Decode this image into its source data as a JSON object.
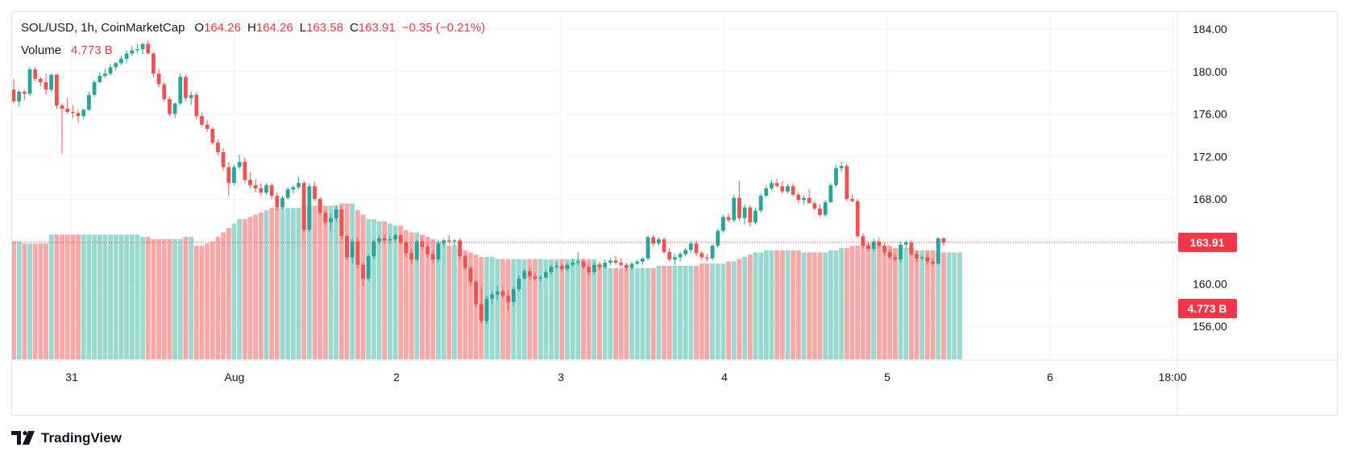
{
  "header": {
    "symbol": "SOL/USD, 1h, CoinMarketCap",
    "open_label": "O",
    "open": "164.26",
    "high_label": "H",
    "high": "164.26",
    "low_label": "L",
    "low": "163.58",
    "close_label": "C",
    "close": "163.91",
    "change": "−0.35 (−0.21%)",
    "volume_label": "Volume",
    "volume_value": "4.773 B"
  },
  "brand": {
    "name": "TradingView"
  },
  "colors": {
    "up": "#26a69a",
    "down": "#ef5350",
    "up_volume": "#9ad9d0",
    "down_volume": "#f7a9a7",
    "grid": "#f0f3fa",
    "last_price": "#f23645"
  },
  "chart_data": {
    "type": "candlestick",
    "interval": "1h",
    "y_axis": {
      "ticks": [
        "156.00",
        "160.00",
        "164.00",
        "168.00",
        "172.00",
        "176.00",
        "180.00",
        "184.00"
      ],
      "range": [
        152.9,
        185.6
      ]
    },
    "x_axis": {
      "ticks": [
        "31",
        "Aug",
        "2",
        "3",
        "4",
        "5",
        "6",
        "18:00"
      ]
    },
    "last_price": "163.91",
    "last_volume": "4.773 B",
    "grid": true,
    "legend_position": "top-left",
    "candles": [
      [
        178.3,
        179.3,
        177.0,
        177.2
      ],
      [
        177.2,
        178.3,
        176.7,
        178.1
      ],
      [
        178.1,
        178.3,
        177.3,
        177.9
      ],
      [
        177.9,
        180.4,
        177.7,
        180.2
      ],
      [
        180.2,
        180.4,
        179.1,
        179.3
      ],
      [
        179.3,
        179.5,
        178.6,
        179.0
      ],
      [
        179.0,
        179.8,
        177.8,
        178.3
      ],
      [
        178.3,
        179.8,
        178.0,
        179.7
      ],
      [
        179.7,
        179.8,
        176.5,
        176.8
      ],
      [
        176.8,
        177.0,
        172.3,
        176.5
      ],
      [
        176.5,
        177.5,
        176.0,
        176.2
      ],
      [
        176.2,
        176.8,
        175.6,
        176.1
      ],
      [
        176.1,
        176.4,
        175.2,
        175.8
      ],
      [
        175.8,
        176.5,
        175.5,
        176.4
      ],
      [
        176.4,
        178.1,
        176.3,
        177.8
      ],
      [
        177.8,
        179.2,
        177.6,
        179.0
      ],
      [
        179.0,
        179.9,
        178.9,
        179.6
      ],
      [
        179.6,
        180.3,
        179.4,
        179.8
      ],
      [
        179.8,
        180.7,
        179.6,
        180.4
      ],
      [
        180.4,
        180.9,
        180.1,
        180.8
      ],
      [
        180.8,
        181.5,
        180.6,
        181.2
      ],
      [
        181.2,
        182.0,
        180.8,
        181.7
      ],
      [
        181.7,
        182.4,
        181.5,
        182.0
      ],
      [
        182.0,
        182.6,
        181.7,
        182.1
      ],
      [
        182.1,
        182.7,
        181.6,
        182.6
      ],
      [
        182.6,
        182.9,
        181.9,
        181.7
      ],
      [
        181.7,
        181.8,
        179.5,
        179.8
      ],
      [
        179.8,
        180.2,
        178.5,
        178.8
      ],
      [
        178.8,
        179.0,
        177.2,
        177.4
      ],
      [
        177.4,
        177.6,
        175.8,
        176.0
      ],
      [
        176.0,
        177.1,
        175.6,
        177.0
      ],
      [
        177.0,
        179.8,
        176.8,
        179.5
      ],
      [
        179.5,
        179.7,
        177.2,
        177.5
      ],
      [
        177.5,
        178.1,
        176.8,
        177.8
      ],
      [
        177.8,
        178.0,
        175.5,
        175.8
      ],
      [
        175.8,
        176.1,
        174.8,
        175.0
      ],
      [
        175.0,
        175.4,
        174.3,
        174.6
      ],
      [
        174.6,
        174.8,
        173.1,
        173.3
      ],
      [
        173.3,
        173.6,
        172.1,
        172.4
      ],
      [
        172.4,
        172.8,
        170.7,
        171.0
      ],
      [
        171.0,
        171.5,
        168.3,
        169.5
      ],
      [
        169.5,
        171.2,
        169.3,
        171.0
      ],
      [
        171.0,
        172.2,
        170.8,
        171.5
      ],
      [
        171.5,
        171.9,
        169.5,
        169.8
      ],
      [
        169.8,
        170.5,
        169.0,
        169.3
      ],
      [
        169.3,
        169.9,
        168.6,
        169.0
      ],
      [
        169.0,
        169.5,
        168.3,
        168.6
      ],
      [
        168.6,
        169.5,
        168.4,
        169.3
      ],
      [
        169.3,
        169.5,
        168.0,
        168.3
      ],
      [
        168.3,
        168.6,
        166.9,
        167.2
      ],
      [
        167.2,
        168.3,
        167.0,
        168.1
      ],
      [
        168.1,
        169.1,
        167.9,
        168.9
      ],
      [
        168.9,
        169.3,
        168.5,
        169.1
      ],
      [
        169.1,
        170.1,
        168.9,
        169.5
      ],
      [
        169.5,
        169.7,
        164.8,
        165.1
      ],
      [
        165.1,
        169.5,
        164.9,
        169.2
      ],
      [
        169.2,
        169.6,
        167.8,
        168.0
      ],
      [
        168.0,
        168.2,
        166.4,
        166.7
      ],
      [
        166.7,
        166.9,
        165.5,
        165.8
      ],
      [
        165.8,
        166.6,
        165.0,
        166.2
      ],
      [
        166.2,
        167.4,
        165.9,
        167.0
      ],
      [
        167.0,
        167.3,
        164.2,
        164.5
      ],
      [
        164.5,
        164.7,
        162.2,
        162.5
      ],
      [
        162.5,
        164.3,
        161.9,
        164.0
      ],
      [
        164.0,
        164.4,
        161.4,
        161.8
      ],
      [
        161.8,
        162.0,
        159.8,
        160.5
      ],
      [
        160.5,
        162.8,
        160.3,
        162.6
      ],
      [
        162.6,
        164.2,
        162.4,
        164.0
      ],
      [
        164.0,
        164.6,
        163.7,
        164.3
      ],
      [
        164.3,
        164.7,
        163.9,
        164.1
      ],
      [
        164.1,
        164.5,
        163.8,
        164.2
      ],
      [
        164.2,
        164.8,
        164.0,
        164.6
      ],
      [
        164.6,
        164.7,
        163.7,
        163.9
      ],
      [
        163.9,
        164.0,
        162.5,
        162.9
      ],
      [
        162.9,
        163.3,
        161.9,
        162.3
      ],
      [
        162.3,
        164.2,
        162.1,
        164.0
      ],
      [
        164.0,
        164.3,
        163.2,
        163.5
      ],
      [
        163.5,
        163.7,
        162.5,
        162.8
      ],
      [
        162.8,
        163.2,
        161.9,
        162.3
      ],
      [
        162.3,
        164.1,
        162.0,
        163.8
      ],
      [
        163.8,
        164.3,
        163.6,
        164.1
      ],
      [
        164.1,
        164.6,
        163.8,
        164.0
      ],
      [
        164.0,
        164.2,
        163.5,
        164.1
      ],
      [
        164.1,
        164.3,
        162.3,
        162.6
      ],
      [
        162.6,
        162.8,
        161.3,
        161.5
      ],
      [
        161.5,
        161.7,
        159.8,
        160.2
      ],
      [
        160.2,
        160.4,
        157.8,
        158.1
      ],
      [
        158.1,
        159.7,
        156.3,
        156.5
      ],
      [
        156.5,
        158.9,
        156.2,
        158.6
      ],
      [
        158.6,
        159.3,
        158.1,
        159.0
      ],
      [
        159.0,
        159.8,
        158.5,
        159.3
      ],
      [
        159.3,
        159.5,
        158.6,
        158.9
      ],
      [
        158.9,
        159.4,
        157.5,
        158.3
      ],
      [
        158.3,
        159.8,
        157.9,
        159.5
      ],
      [
        159.5,
        160.8,
        159.3,
        160.5
      ],
      [
        160.5,
        161.4,
        160.3,
        161.2
      ],
      [
        161.2,
        161.5,
        160.4,
        160.7
      ],
      [
        160.7,
        161.0,
        160.3,
        160.5
      ],
      [
        160.5,
        160.8,
        160.2,
        160.6
      ],
      [
        160.6,
        161.3,
        160.5,
        161.1
      ],
      [
        161.1,
        161.8,
        160.9,
        161.6
      ],
      [
        161.6,
        162.0,
        161.4,
        161.7
      ],
      [
        161.7,
        161.9,
        161.2,
        161.4
      ],
      [
        161.4,
        162.0,
        161.2,
        161.8
      ],
      [
        161.8,
        162.4,
        161.6,
        162.0
      ],
      [
        162.0,
        163.0,
        161.8,
        162.1
      ],
      [
        162.1,
        162.4,
        161.4,
        161.6
      ],
      [
        161.6,
        161.8,
        160.8,
        161.1
      ],
      [
        161.1,
        162.0,
        160.9,
        161.8
      ],
      [
        161.8,
        162.1,
        161.3,
        161.6
      ],
      [
        161.6,
        162.3,
        161.4,
        162.0
      ],
      [
        162.0,
        162.5,
        161.8,
        162.2
      ],
      [
        162.2,
        162.6,
        161.8,
        162.0
      ],
      [
        162.0,
        162.4,
        161.6,
        161.8
      ],
      [
        161.8,
        162.0,
        161.2,
        161.5
      ],
      [
        161.5,
        162.1,
        161.3,
        161.9
      ],
      [
        161.9,
        162.3,
        161.7,
        162.1
      ],
      [
        162.1,
        162.5,
        161.8,
        162.4
      ],
      [
        162.4,
        164.5,
        162.2,
        164.4
      ],
      [
        164.4,
        164.6,
        163.5,
        163.8
      ],
      [
        163.8,
        164.4,
        163.6,
        164.2
      ],
      [
        164.2,
        164.4,
        162.8,
        163.0
      ],
      [
        163.0,
        163.4,
        162.1,
        162.3
      ],
      [
        162.3,
        162.8,
        161.8,
        162.5
      ],
      [
        162.5,
        163.0,
        162.1,
        162.8
      ],
      [
        162.8,
        163.4,
        162.6,
        163.2
      ],
      [
        163.2,
        164.0,
        163.0,
        163.8
      ],
      [
        163.8,
        164.0,
        162.6,
        162.9
      ],
      [
        162.9,
        163.1,
        162.2,
        162.5
      ],
      [
        162.5,
        162.8,
        162.1,
        162.4
      ],
      [
        162.4,
        163.8,
        162.2,
        163.6
      ],
      [
        163.6,
        165.2,
        163.4,
        165.0
      ],
      [
        165.0,
        166.5,
        164.8,
        166.3
      ],
      [
        166.3,
        166.6,
        165.8,
        166.0
      ],
      [
        166.0,
        168.4,
        165.8,
        168.1
      ],
      [
        168.1,
        169.7,
        165.9,
        166.2
      ],
      [
        166.2,
        167.5,
        165.6,
        167.2
      ],
      [
        167.2,
        167.4,
        165.4,
        165.8
      ],
      [
        165.8,
        167.2,
        165.6,
        166.9
      ],
      [
        166.9,
        168.5,
        166.7,
        168.3
      ],
      [
        168.3,
        169.3,
        168.1,
        169.0
      ],
      [
        169.0,
        169.8,
        168.8,
        169.5
      ],
      [
        169.5,
        169.9,
        169.1,
        169.2
      ],
      [
        169.2,
        169.7,
        168.5,
        168.7
      ],
      [
        168.7,
        169.4,
        168.5,
        169.2
      ],
      [
        169.2,
        169.5,
        168.2,
        168.4
      ],
      [
        168.4,
        168.6,
        167.6,
        167.9
      ],
      [
        167.9,
        168.3,
        167.5,
        168.1
      ],
      [
        168.1,
        168.9,
        167.8,
        167.6
      ],
      [
        167.6,
        167.8,
        166.9,
        167.1
      ],
      [
        167.1,
        167.5,
        166.3,
        166.5
      ],
      [
        166.5,
        167.9,
        166.3,
        167.7
      ],
      [
        167.7,
        169.5,
        167.6,
        169.3
      ],
      [
        169.3,
        171.2,
        169.1,
        170.9
      ],
      [
        170.9,
        171.5,
        170.6,
        171.1
      ],
      [
        171.1,
        171.3,
        167.8,
        168.0
      ],
      [
        168.0,
        168.4,
        167.7,
        167.8
      ],
      [
        167.8,
        168.0,
        164.3,
        164.5
      ],
      [
        164.5,
        164.8,
        163.3,
        163.6
      ],
      [
        163.6,
        164.0,
        163.1,
        163.3
      ],
      [
        163.3,
        164.3,
        163.1,
        164.0
      ],
      [
        164.0,
        164.4,
        163.4,
        163.6
      ],
      [
        163.6,
        163.9,
        162.7,
        163.0
      ],
      [
        163.0,
        163.3,
        162.3,
        162.5
      ],
      [
        162.5,
        162.8,
        162.1,
        162.3
      ],
      [
        162.3,
        164.0,
        162.0,
        163.7
      ],
      [
        163.7,
        164.1,
        163.3,
        163.9
      ],
      [
        163.9,
        164.1,
        162.6,
        162.8
      ],
      [
        162.8,
        163.1,
        162.1,
        162.4
      ],
      [
        162.4,
        162.7,
        162.2,
        162.5
      ],
      [
        162.5,
        162.9,
        161.8,
        162.1
      ],
      [
        162.1,
        162.4,
        161.7,
        161.9
      ],
      [
        161.9,
        164.4,
        161.8,
        164.3
      ],
      [
        164.3,
        164.4,
        163.6,
        163.9
      ]
    ],
    "volumes": [
      5.3,
      5.3,
      5.2,
      5.2,
      5.2,
      5.2,
      5.2,
      5.6,
      5.6,
      5.6,
      5.6,
      5.6,
      5.6,
      5.6,
      5.6,
      5.6,
      5.6,
      5.6,
      5.6,
      5.6,
      5.6,
      5.6,
      5.6,
      5.6,
      5.5,
      5.5,
      5.4,
      5.4,
      5.4,
      5.4,
      5.4,
      5.4,
      5.5,
      5.5,
      5.1,
      5.1,
      5.2,
      5.3,
      5.5,
      5.7,
      5.9,
      6.1,
      6.3,
      6.3,
      6.4,
      6.5,
      6.6,
      6.7,
      6.8,
      6.8,
      6.8,
      6.8,
      6.8,
      6.8,
      6.9,
      6.9,
      6.9,
      6.9,
      6.9,
      6.9,
      6.9,
      7.0,
      7.0,
      7.0,
      6.7,
      6.5,
      6.3,
      6.3,
      6.2,
      6.2,
      6.1,
      6.0,
      6.0,
      5.8,
      5.7,
      5.7,
      5.6,
      5.5,
      5.4,
      5.3,
      5.2,
      5.1,
      5.1,
      5.0,
      4.9,
      4.8,
      4.7,
      4.6,
      4.6,
      4.6,
      4.5,
      4.5,
      4.5,
      4.5,
      4.5,
      4.5,
      4.5,
      4.5,
      4.5,
      4.5,
      4.5,
      4.5,
      4.5,
      4.5,
      4.5,
      4.5,
      4.5,
      4.5,
      4.5,
      4.3,
      4.2,
      4.1,
      4.1,
      4.1,
      4.1,
      4.1,
      4.1,
      4.1,
      4.1,
      4.1,
      4.2,
      4.2,
      4.2,
      4.2,
      4.2,
      4.2,
      4.2,
      4.2,
      4.3,
      4.3,
      4.3,
      4.3,
      4.3,
      4.4,
      4.4,
      4.5,
      4.6,
      4.7,
      4.8,
      4.8,
      4.9,
      4.9,
      4.9,
      4.9,
      4.9,
      4.9,
      4.9,
      4.8,
      4.8,
      4.8,
      4.8,
      4.8,
      4.9,
      4.9,
      5.0,
      5.0,
      5.1,
      5.1,
      5.2,
      5.2,
      5.2,
      5.2,
      5.1,
      5.1,
      5.0,
      5.0,
      5.0,
      5.0,
      4.9,
      4.9,
      4.9,
      4.9,
      4.8,
      4.8,
      4.8,
      4.8,
      4.8
    ]
  }
}
